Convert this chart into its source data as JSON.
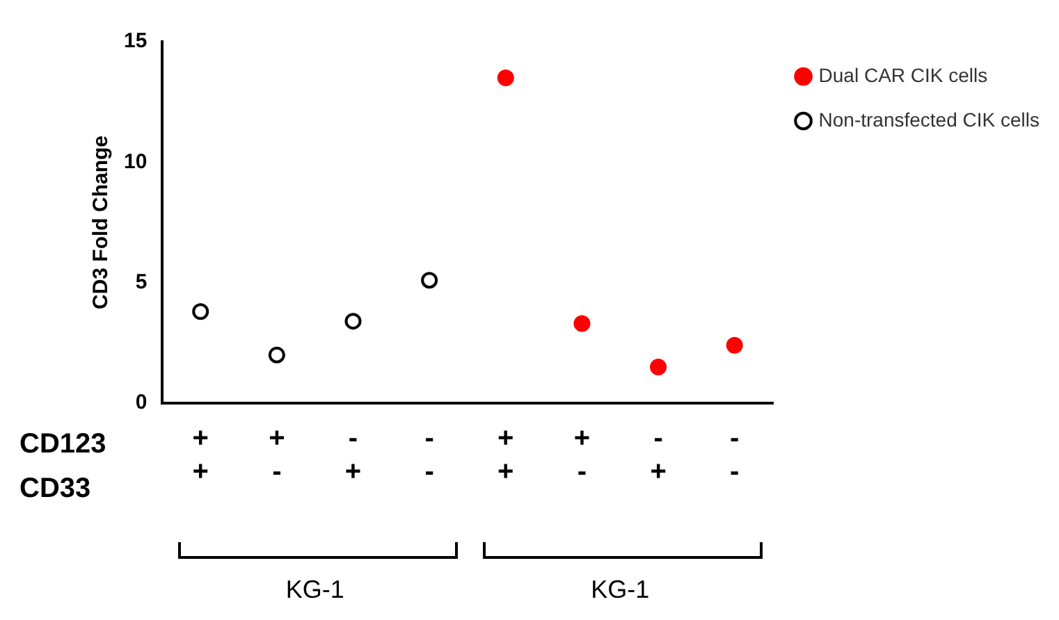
{
  "chart_data": {
    "type": "scatter",
    "ylabel": "CD3 Fold Change",
    "categories": [
      "+\n+",
      "+\n-",
      "-\n+",
      "-\n-",
      "+\n+",
      "+\n-",
      "-\n+",
      "-\n-"
    ],
    "series": [
      {
        "name": "Dual CAR CIK cells",
        "color": "#ff0000",
        "values": [
          null,
          null,
          null,
          null,
          13.5,
          3.3,
          1.5,
          2.4
        ]
      },
      {
        "name": "Non-transfected CIK cells",
        "color": "#000000",
        "values": [
          3.8,
          2.0,
          3.4,
          5.1,
          null,
          null,
          null,
          null
        ]
      }
    ],
    "ylim": [
      0,
      15
    ],
    "yticks": [
      0,
      5,
      10,
      15
    ],
    "grid": false,
    "legend": "top right",
    "marker": "circle",
    "annotations": [
      "CD123",
      "CD33",
      "KG-1",
      "KG-1"
    ]
  }
}
